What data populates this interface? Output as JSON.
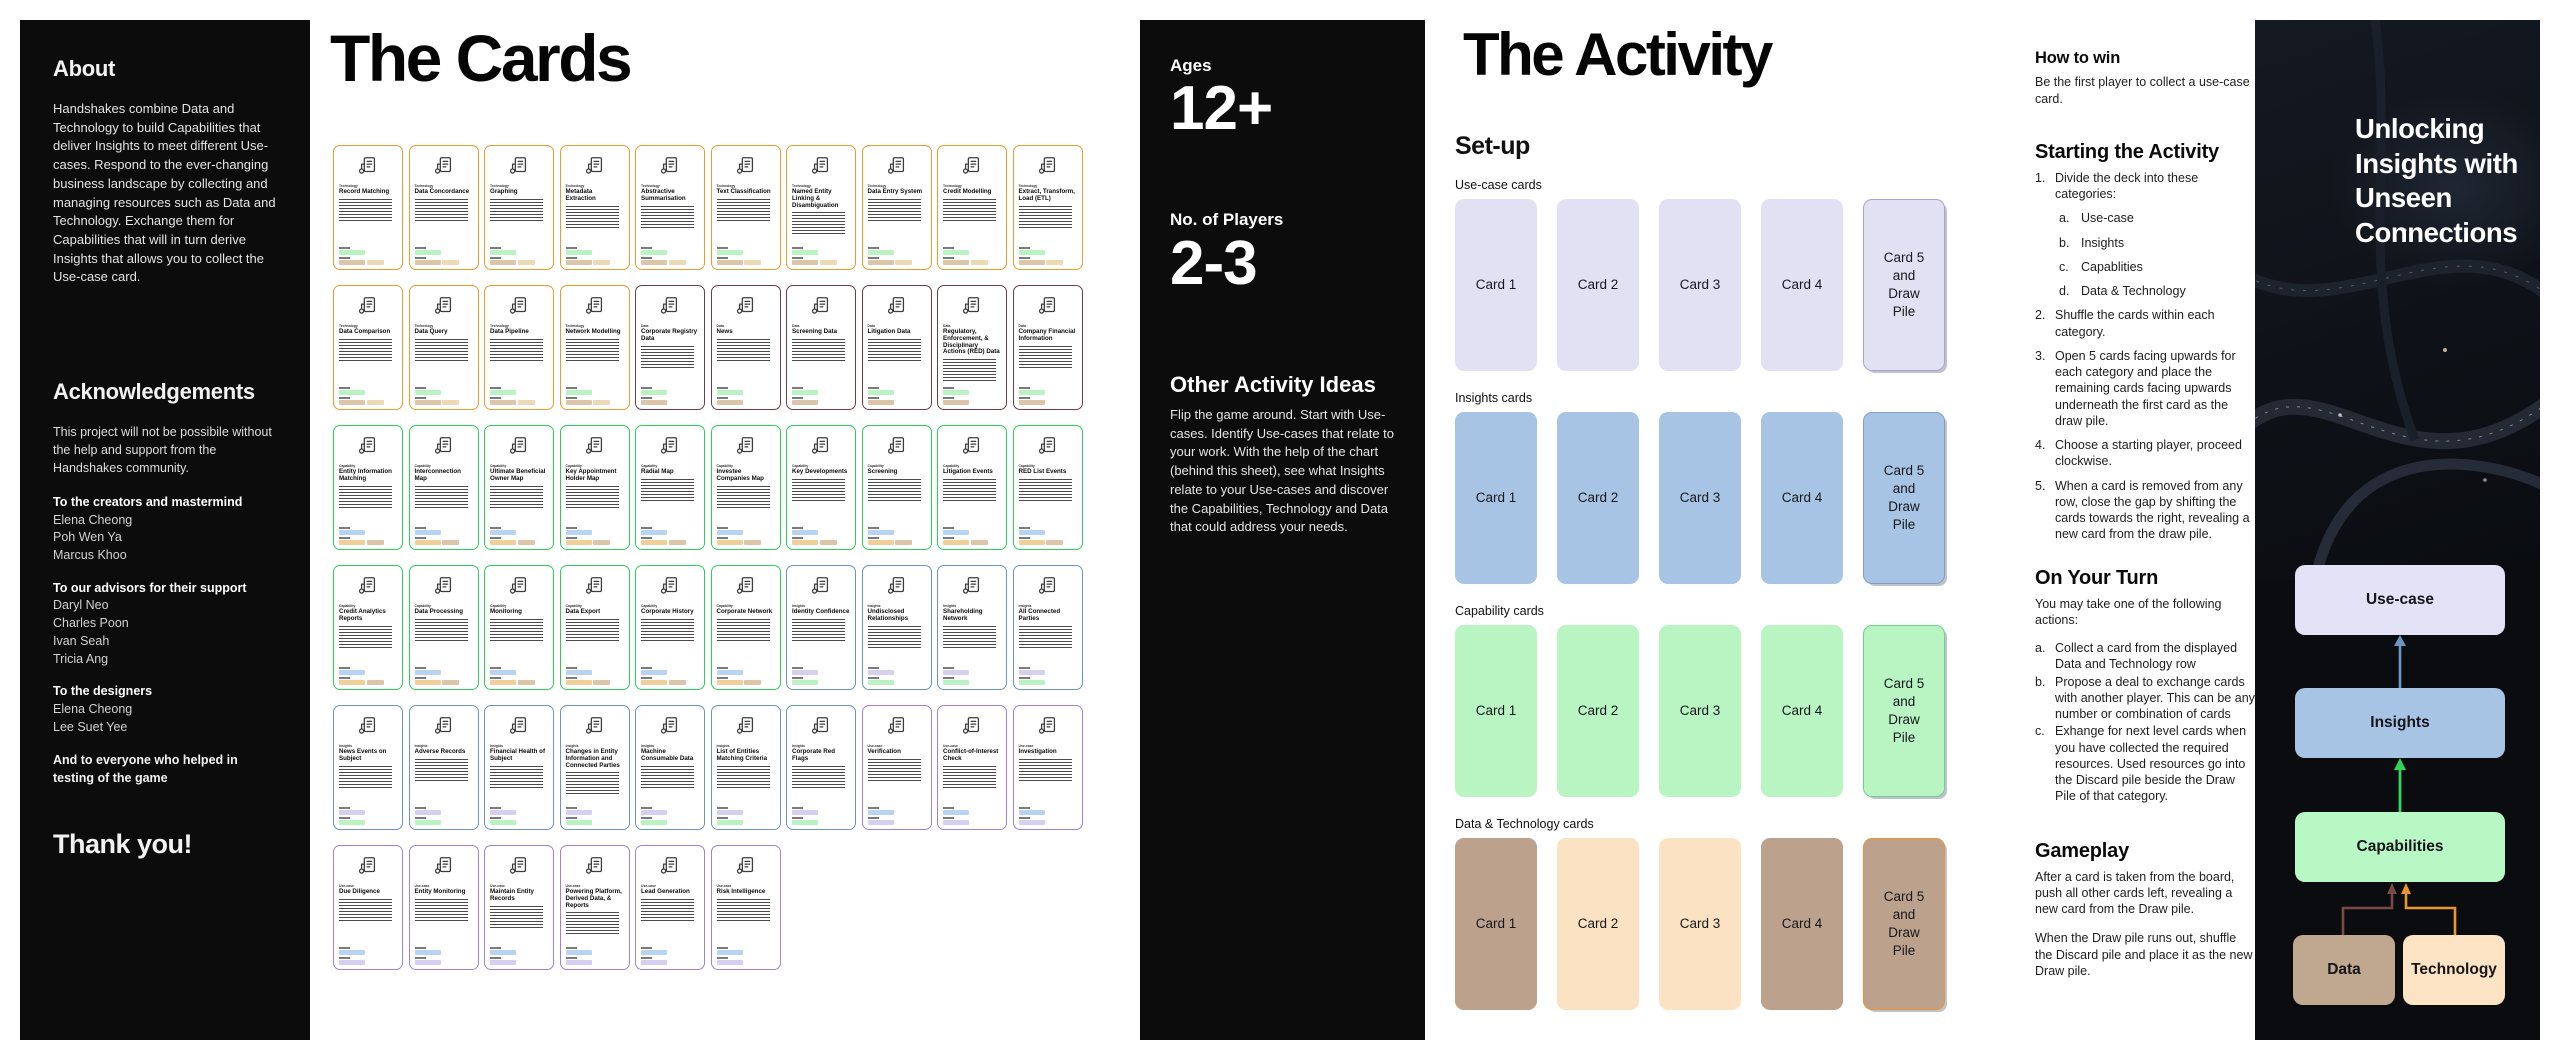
{
  "about": {
    "title": "About",
    "body": "Handshakes combine Data and Technology to build Capabilities that deliver Insights to meet different Use-cases. Respond to the ever-changing business landscape by collecting and managing resources such as Data and Technology. Exchange them for Capabilities that will in turn derive Insights that allows you to collect the Use-case card.",
    "ack_title": "Acknowledgements",
    "ack_body": "This project will not be possibile without the help and support from the Handshakes community.",
    "groups": [
      {
        "heading": "To the creators and mastermind",
        "names": [
          "Elena Cheong",
          "Poh Wen Ya",
          "Marcus Khoo"
        ]
      },
      {
        "heading": "To our advisors for their support",
        "names": [
          "Daryl Neo",
          "Charles Poon",
          "Ivan Seah",
          "Tricia Ang"
        ]
      },
      {
        "heading": "To the designers",
        "names": [
          "Elena Cheong",
          "Lee Suet Yee"
        ]
      }
    ],
    "closing": "And to everyone who helped in testing of the game",
    "thanks": "Thank you!"
  },
  "cards": {
    "title": "The Cards",
    "categories": {
      "tech": {
        "label": "Technology",
        "border": "#EA9C31",
        "chip1": [
          "#baf2c4"
        ],
        "chip2": [
          "#dcc5a8",
          "#eed9b6"
        ]
      },
      "data": {
        "label": "Data",
        "border": "#6F3D45",
        "chip1": [
          "#baf2c4"
        ],
        "chip2": [
          "#dcc5a8"
        ]
      },
      "cap": {
        "label": "Capability",
        "border": "#2FCE5A",
        "chip1": [
          "#b9d4f2"
        ],
        "chip2": [
          "#f0cf9a",
          "#dcc5a8"
        ]
      },
      "ins": {
        "label": "Insights",
        "border": "#6B94C1",
        "chip1": [
          "#d6d0f0"
        ],
        "chip2": [
          "#baf2c4"
        ]
      },
      "use": {
        "label": "Use-case",
        "border": "#9C83D6",
        "chip1": [
          "#b9d4f2"
        ],
        "chip2": [
          "#d6d0f0"
        ]
      }
    },
    "items": [
      {
        "t": "Record Matching",
        "c": "tech"
      },
      {
        "t": "Data Concordance",
        "c": "tech"
      },
      {
        "t": "Graphing",
        "c": "tech"
      },
      {
        "t": "Metadata Extraction",
        "c": "tech"
      },
      {
        "t": "Abstractive Summarisation",
        "c": "tech"
      },
      {
        "t": "Text Classification",
        "c": "tech"
      },
      {
        "t": "Named Entity Linking & Disambiguation",
        "c": "tech"
      },
      {
        "t": "Data Entry System",
        "c": "tech"
      },
      {
        "t": "Credit Modelling",
        "c": "tech"
      },
      {
        "t": "Extract, Transform, Load (ETL)",
        "c": "tech"
      },
      {
        "t": "Data Comparison",
        "c": "tech"
      },
      {
        "t": "Data Query",
        "c": "tech"
      },
      {
        "t": "Data Pipeline",
        "c": "tech"
      },
      {
        "t": "Network Modelling",
        "c": "tech"
      },
      {
        "t": "Corporate Registry Data",
        "c": "data"
      },
      {
        "t": "News",
        "c": "data"
      },
      {
        "t": "Screening Data",
        "c": "data"
      },
      {
        "t": "Litigation Data",
        "c": "data"
      },
      {
        "t": "Regulatory, Enforcement, & Disciplinary Actions (RED) Data",
        "c": "data"
      },
      {
        "t": "Company Financial Information",
        "c": "data"
      },
      {
        "t": "Entity Information Matching",
        "c": "cap"
      },
      {
        "t": "Interconnection Map",
        "c": "cap"
      },
      {
        "t": "Ultimate Beneficial Owner Map",
        "c": "cap"
      },
      {
        "t": "Key Appointment Holder Map",
        "c": "cap"
      },
      {
        "t": "Radial Map",
        "c": "cap"
      },
      {
        "t": "Investee Companies Map",
        "c": "cap"
      },
      {
        "t": "Key Developments",
        "c": "cap"
      },
      {
        "t": "Screening",
        "c": "cap"
      },
      {
        "t": "Litigation Events",
        "c": "cap"
      },
      {
        "t": "RED List Events",
        "c": "cap"
      },
      {
        "t": "Credit Analytics Reports",
        "c": "cap"
      },
      {
        "t": "Data Processing",
        "c": "cap"
      },
      {
        "t": "Monitoring",
        "c": "cap"
      },
      {
        "t": "Data Export",
        "c": "cap"
      },
      {
        "t": "Corporate History",
        "c": "cap"
      },
      {
        "t": "Corporate Network",
        "c": "cap"
      },
      {
        "t": "Identity Confidence",
        "c": "ins"
      },
      {
        "t": "Undisclosed Relationships",
        "c": "ins"
      },
      {
        "t": "Shareholding Network",
        "c": "ins"
      },
      {
        "t": "All Connected Parties",
        "c": "ins"
      },
      {
        "t": "News Events on Subject",
        "c": "ins"
      },
      {
        "t": "Adverse Records",
        "c": "ins"
      },
      {
        "t": "Financial Health of Subject",
        "c": "ins"
      },
      {
        "t": "Changes in Entity Information and Connected Parties",
        "c": "ins"
      },
      {
        "t": "Machine Consumable Data",
        "c": "ins"
      },
      {
        "t": "List of Entities Matching Criteria",
        "c": "ins"
      },
      {
        "t": "Corporate Red Flags",
        "c": "ins"
      },
      {
        "t": "Verification",
        "c": "use"
      },
      {
        "t": "Conflict-of-Interest Check",
        "c": "use"
      },
      {
        "t": "Investigation",
        "c": "use"
      },
      {
        "t": "Due Diligence",
        "c": "use"
      },
      {
        "t": "Entity Monitoring",
        "c": "use"
      },
      {
        "t": "Maintain Entity Records",
        "c": "use"
      },
      {
        "t": "Powering Platform, Derived Data, & Reports",
        "c": "use"
      },
      {
        "t": "Lead Generation",
        "c": "use"
      },
      {
        "t": "Risk Intelligence",
        "c": "use"
      }
    ]
  },
  "mid": {
    "ages_label": "Ages",
    "ages": "12+",
    "players_label": "No. of Players",
    "players": "2-3",
    "ideas_title": "Other Activity Ideas",
    "ideas_body": "Flip the game around. Start with Use-cases. Identify Use-cases that relate to your work. With the help of the chart (behind this sheet), see what Insights relate to your Use-cases and discover the Capabilities, Technology and Data that could address your needs."
  },
  "activity": {
    "title": "The Activity",
    "setup": {
      "heading": "Set-up",
      "colors": {
        "usecase": "#E2E1F4",
        "insights": "#A7C4E5",
        "capability": "#B8F5C3",
        "data": "#BCA28D",
        "tech": "#FBE2C2"
      },
      "rows": [
        {
          "label": "Use-case cards",
          "keys": [
            "usecase",
            "usecase",
            "usecase",
            "usecase",
            "usecase"
          ],
          "pileBorder": "#A9A4D8",
          "cards": [
            "Card 1",
            "Card 2",
            "Card 3",
            "Card 4"
          ],
          "pile": "Card 5 and Draw Pile"
        },
        {
          "label": "Insights cards",
          "keys": [
            "insights",
            "insights",
            "insights",
            "insights",
            "insights"
          ],
          "pileBorder": "#7E9FC6",
          "cards": [
            "Card 1",
            "Card 2",
            "Card 3",
            "Card 4"
          ],
          "pile": "Card 5 and Draw Pile"
        },
        {
          "label": "Capability cards",
          "keys": [
            "capability",
            "capability",
            "capability",
            "capability",
            "capability"
          ],
          "pileBorder": "#6FCF8B",
          "cards": [
            "Card 1",
            "Card 2",
            "Card 3",
            "Card 4"
          ],
          "pile": "Card 5 and Draw Pile"
        },
        {
          "label": "Data & Technology cards",
          "keys": [
            "data",
            "tech",
            "tech",
            "data",
            "data"
          ],
          "pileBorder": "#E8962E",
          "cards": [
            "Card 1",
            "Card 2",
            "Card 3",
            "Card 4"
          ],
          "pile": "Card 5 and Draw Pile"
        }
      ]
    },
    "how_to_win": {
      "title": "How to win",
      "body": "Be the first player to collect a use-case card."
    },
    "starting": {
      "title": "Starting the Activity",
      "items": [
        {
          "n": "1.",
          "t": "Divide the deck into these categories:",
          "subs": [
            {
              "n": "a.",
              "t": "Use-case"
            },
            {
              "n": "b.",
              "t": "Insights"
            },
            {
              "n": "c.",
              "t": "Capablities"
            },
            {
              "n": "d.",
              "t": "Data & Technology"
            }
          ]
        },
        {
          "n": "2.",
          "t": "Shuffle the cards within each category."
        },
        {
          "n": "3.",
          "t": "Open 5 cards facing upwards for each category and place the remaining cards facing upwards underneath the first card as the draw pile."
        },
        {
          "n": "4.",
          "t": "Choose a starting player, proceed clockwise."
        },
        {
          "n": "5.",
          "t": "When a card is removed from any row, close the gap by shifting the cards towards the right, revealing a new card from the draw pile."
        }
      ]
    },
    "on_your_turn": {
      "title": "On Your Turn",
      "intro": "You may take one of the following actions:",
      "items": [
        {
          "n": "a.",
          "t": "Collect a card from the displayed Data and Technology row"
        },
        {
          "n": "b.",
          "t": "Propose a deal to exchange cards with another player. This can be any number or combination of cards"
        },
        {
          "n": "c.",
          "t": "Exhange for next level cards when you have collected the required resources. Used resources go into the Discard pile beside the Draw Pile of that category."
        }
      ]
    },
    "gameplay": {
      "title": "Gameplay",
      "p1": "After a card is taken from the board, push all other cards left, revealing a new card from the Draw pile.",
      "p2": "When the Draw pile runs out, shuffle the Discard pile and place it as the new Draw pile."
    }
  },
  "right": {
    "heading": "Unlocking Insights with Unseen Connections",
    "diagram": {
      "usecase": "Use-case",
      "insights": "Insights",
      "capabilities": "Capabilities",
      "data": "Data",
      "technology": "Technology"
    }
  }
}
